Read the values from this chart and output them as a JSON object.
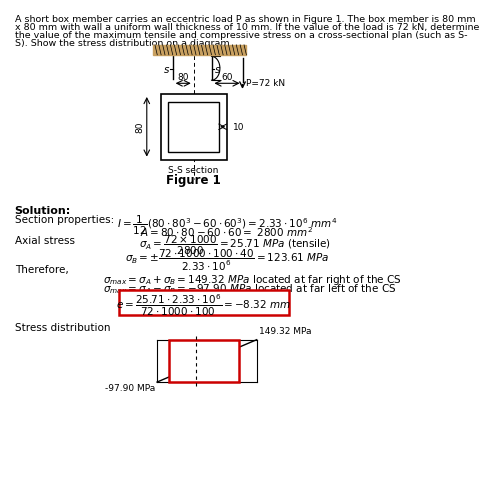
{
  "bg_color": "#ffffff",
  "text_color": "#000000",
  "box_color": "#cc0000",
  "fig_color": "#c8a060",
  "problem_lines": [
    "A short box member carries an eccentric load P as shown in Figure 1. The box member is 80 mm",
    "x 80 mm with wall a uniform wall thickness of 10 mm. If the value of the load is 72 kN, determine",
    "the value of the maximum tensile and compressive stress on a cross-sectional plan (such as S-",
    "S). Show the stress distribution on a diagram."
  ],
  "val_tensile": "149.32 MPa",
  "val_compressive": "-97.90 MPa",
  "val_e": "8.32 mm"
}
